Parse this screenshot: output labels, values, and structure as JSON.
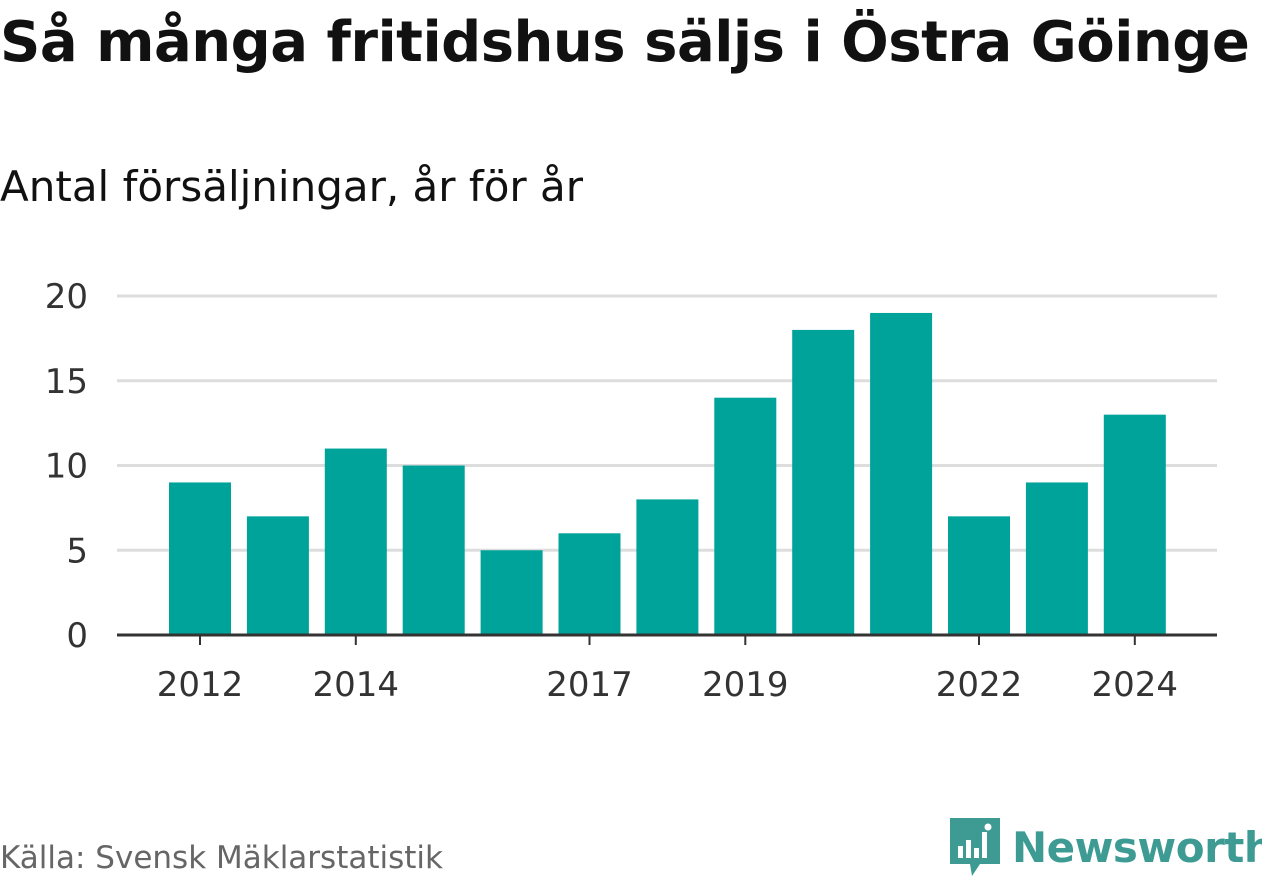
{
  "title": "Så många fritidshus säljs i Östra Göinge",
  "subtitle": "Antal försäljningar, år för år",
  "source": "Källa: Svensk Mäklarstatistik",
  "logo": {
    "text": "Newsworthy",
    "icon": "newsworthy-logo-icon",
    "color": "#3e9b93"
  },
  "colors": {
    "bar": "#00a39a",
    "grid": "#dddddd",
    "axis": "#333333"
  },
  "chart_data": {
    "type": "bar",
    "title": "Så många fritidshus säljs i Östra Göinge",
    "subtitle": "Antal försäljningar, år för år",
    "categories": [
      "2012",
      "2013",
      "2014",
      "2015",
      "2016",
      "2017",
      "2018",
      "2019",
      "2020",
      "2021",
      "2022",
      "2023",
      "2024"
    ],
    "values": [
      9,
      7,
      11,
      10,
      5,
      6,
      8,
      14,
      18,
      19,
      7,
      9,
      13
    ],
    "x_tick_labels": [
      "2012",
      "2014",
      "2017",
      "2019",
      "2022",
      "2024"
    ],
    "y_ticks": [
      0,
      5,
      10,
      15,
      20
    ],
    "ylim": [
      0,
      20
    ],
    "xlabel": "",
    "ylabel": "",
    "grid": true,
    "legend": "none"
  }
}
